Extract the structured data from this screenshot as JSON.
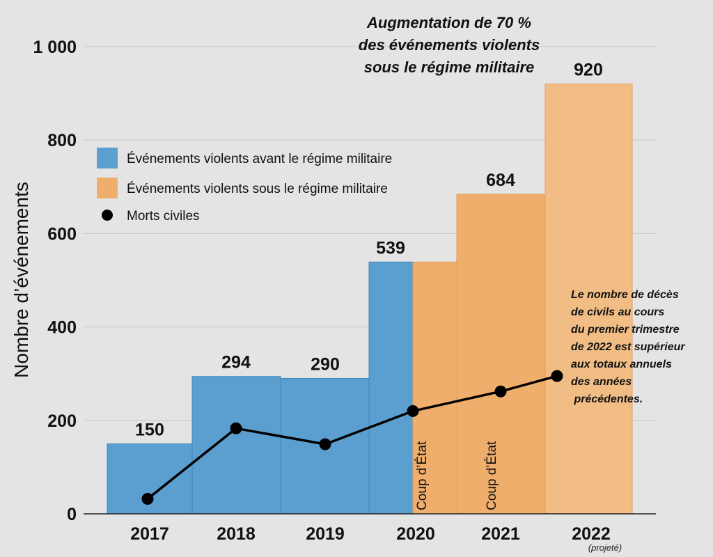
{
  "colors": {
    "background": "#e5e4e4",
    "before": "#5b9fd1",
    "before_stroke": "#3f86bc",
    "under": "#f0ae6c",
    "under_light": "#f1bd85",
    "line": "#000000",
    "grid": "#c8c8c8"
  },
  "chart_data": {
    "type": "bar",
    "title": "",
    "xlabel": "",
    "ylabel": "Nombre d’événements",
    "ylim": [
      0,
      1000
    ],
    "yticks": [
      0,
      200,
      400,
      600,
      800,
      1000
    ],
    "ytick_labels": [
      "0",
      "200",
      "400",
      "600",
      "800",
      "1 000"
    ],
    "grid": true,
    "categories": [
      "2017",
      "2018",
      "2019",
      "2020",
      "2021",
      "2022"
    ],
    "category_note": "(projeté)",
    "bars": [
      {
        "period": "2017",
        "value": 150,
        "label": "150",
        "series": "before"
      },
      {
        "period": "2018",
        "value": 294,
        "label": "294",
        "series": "before"
      },
      {
        "period": "2019",
        "value": 290,
        "label": "290",
        "series": "before"
      },
      {
        "period": "2020 (avant coup d’État)",
        "value": 539,
        "label": "539",
        "series": "before"
      },
      {
        "period": "2020 (après coup d’État)",
        "value": 539,
        "label": "",
        "series": "under"
      },
      {
        "period": "2021",
        "value": 684,
        "label": "684",
        "series": "under"
      },
      {
        "period": "2022",
        "value": 920,
        "label": "920",
        "series": "under"
      }
    ],
    "civilian_deaths": {
      "x": [
        "2017",
        "2018",
        "2019",
        "2020",
        "2021",
        "2022"
      ],
      "y": [
        32,
        183,
        149,
        220,
        262,
        295
      ]
    },
    "legend": {
      "placement": "upper-left",
      "before": "Événements violents avant le régime militaire",
      "under": "Événements violents sous le régime militaire",
      "deaths": "Morts civiles"
    },
    "coup_markers": [
      "Coup d’État",
      "Coup d’État"
    ],
    "annotations": {
      "top": [
        "Augmentation de 70 %",
        "des événements violents",
        "sous le régime militaire"
      ],
      "right": [
        "Le nombre de décès",
        "de civils au cours",
        "du premier trimestre",
        "de 2022 est supérieur",
        "aux totaux annuels",
        "des années",
        " précédentes."
      ]
    }
  }
}
